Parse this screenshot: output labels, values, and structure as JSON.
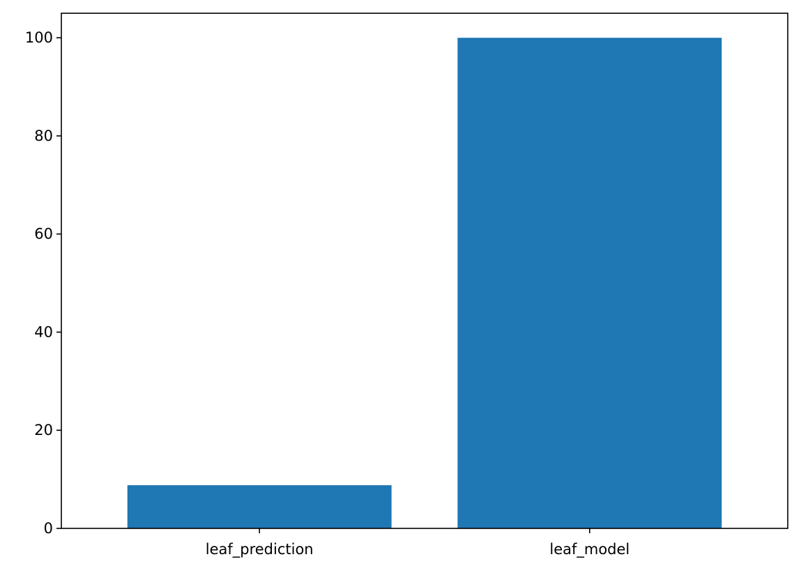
{
  "chart_data": {
    "type": "bar",
    "categories": [
      "leaf_prediction",
      "leaf_model"
    ],
    "values": [
      8.8,
      100
    ],
    "title": "",
    "xlabel": "",
    "ylabel": "",
    "ylim": [
      0,
      105
    ],
    "yticks": [
      0,
      20,
      40,
      60,
      80,
      100
    ],
    "ytick_labels": [
      "0",
      "20",
      "40",
      "60",
      "80",
      "100"
    ],
    "grid": false,
    "legend": "none",
    "colors": {
      "bar": "#1f77b4",
      "axes": "#000000",
      "background": "#ffffff"
    }
  }
}
